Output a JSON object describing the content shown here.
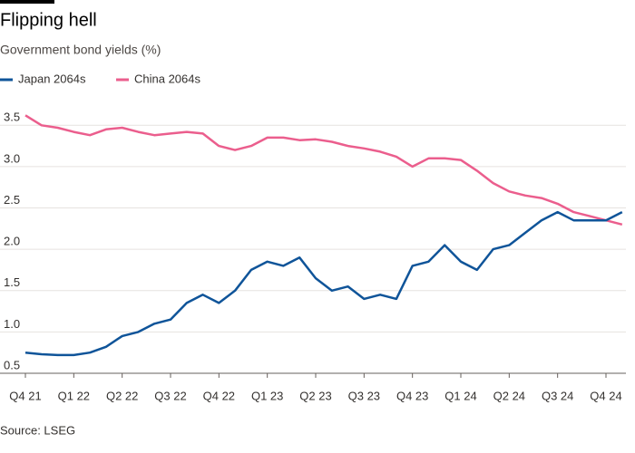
{
  "chart_data": {
    "type": "line",
    "title": "Flipping hell",
    "subtitle": "Government bond yields (%)",
    "source": "Source: LSEG",
    "categories": [
      "Q4 21",
      null,
      null,
      "Q1 22",
      null,
      null,
      "Q2 22",
      null,
      null,
      "Q3 22",
      null,
      null,
      "Q4 22",
      null,
      null,
      "Q1 23",
      null,
      null,
      "Q2 23",
      null,
      null,
      "Q3 23",
      null,
      null,
      "Q4 23",
      null,
      null,
      "Q1 24",
      null,
      null,
      "Q2 24",
      null,
      null,
      "Q3 24",
      null,
      null,
      "Q4 24",
      null
    ],
    "series": [
      {
        "name": "Japan 2064s",
        "color": "#0f5499",
        "values": [
          0.75,
          0.73,
          0.72,
          0.72,
          0.75,
          0.82,
          0.95,
          1.0,
          1.1,
          1.15,
          1.35,
          1.45,
          1.35,
          1.5,
          1.75,
          1.85,
          1.8,
          1.9,
          1.65,
          1.5,
          1.55,
          1.4,
          1.45,
          1.4,
          1.8,
          1.85,
          2.05,
          1.85,
          1.75,
          2.0,
          2.05,
          2.2,
          2.35,
          2.45,
          2.35,
          2.35,
          2.35,
          2.45
        ]
      },
      {
        "name": "China 2064s",
        "color": "#eb5e8d",
        "values": [
          3.62,
          3.5,
          3.47,
          3.42,
          3.38,
          3.45,
          3.47,
          3.42,
          3.38,
          3.4,
          3.42,
          3.4,
          3.25,
          3.2,
          3.25,
          3.35,
          3.35,
          3.32,
          3.33,
          3.3,
          3.25,
          3.22,
          3.18,
          3.12,
          3.0,
          3.1,
          3.1,
          3.08,
          2.95,
          2.8,
          2.7,
          2.65,
          2.62,
          2.55,
          2.45,
          2.4,
          2.35,
          2.3
        ]
      }
    ],
    "ylim": [
      0.5,
      3.7
    ],
    "yticks": [
      0.5,
      {
        "value": 1,
        "label": "1.0"
      },
      1.5,
      {
        "value": 2,
        "label": "2.0"
      },
      2.5,
      {
        "value": 3,
        "label": "3.0"
      },
      3.5
    ],
    "grid": true
  }
}
